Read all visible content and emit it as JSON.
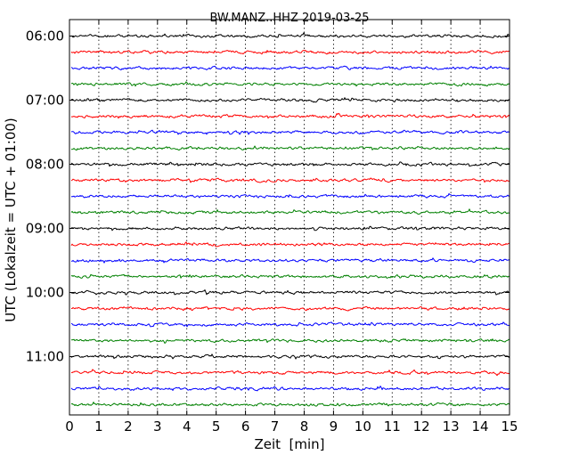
{
  "chart_data": {
    "type": "line",
    "title": "BW.MANZ..HHZ 2019-03-25",
    "xlabel": "Zeit  [min]",
    "ylabel": "UTC (Lokalzeit = UTC + 01:00)",
    "xlim": [
      0,
      15
    ],
    "x_ticks": [
      "0",
      "1",
      "2",
      "3",
      "4",
      "5",
      "6",
      "7",
      "8",
      "9",
      "10",
      "11",
      "12",
      "13",
      "14",
      "15"
    ],
    "y_ticks": [
      "06:00",
      "07:00",
      "08:00",
      "09:00",
      "10:00",
      "11:00"
    ],
    "grid": "vertical dotted",
    "trace_interval_min": 15,
    "trace_count": 24,
    "colors": [
      "#000000",
      "#ff0000",
      "#0000ff",
      "#008000"
    ]
  }
}
